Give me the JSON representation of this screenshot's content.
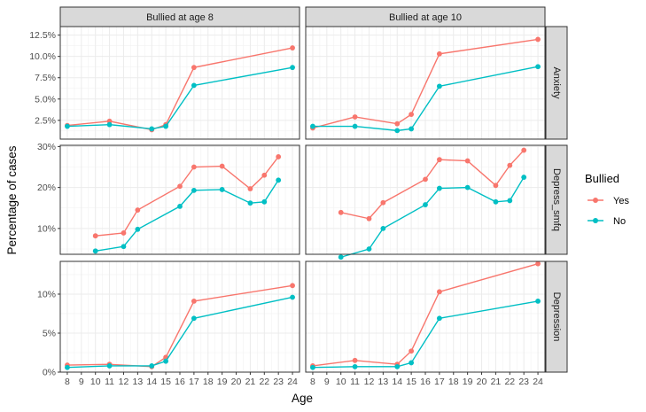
{
  "chart_data": {
    "type": "line",
    "facet_columns": [
      "Bullied at age 8",
      "Bullied at age 10"
    ],
    "facet_rows": [
      "Anxiety",
      "Depress_smfq",
      "Depression"
    ],
    "xlabel": "Age",
    "ylabel": "Percentage of cases",
    "x_ticks": [
      8,
      9,
      10,
      11,
      12,
      13,
      14,
      15,
      16,
      17,
      18,
      19,
      20,
      21,
      22,
      23,
      24
    ],
    "xlim": [
      7.5,
      24.5
    ],
    "rows": [
      {
        "name": "Anxiety",
        "ylim": [
          0.3,
          13.5
        ],
        "y_ticks": [
          2.5,
          5.0,
          7.5,
          10.0,
          12.5
        ],
        "y_tick_labels": [
          "2.5%",
          "5.0%",
          "7.5%",
          "10.0%",
          "12.5%"
        ]
      },
      {
        "name": "Depress_smfq",
        "ylim": [
          3.7,
          30.3
        ],
        "y_ticks": [
          10,
          20,
          30
        ],
        "y_tick_labels": [
          "10%",
          "20%",
          "30%"
        ]
      },
      {
        "name": "Depression",
        "ylim": [
          0,
          14.2
        ],
        "y_ticks": [
          0,
          5,
          10
        ],
        "y_tick_labels": [
          "0%",
          "5%",
          "10%"
        ]
      }
    ],
    "legend": {
      "title": "Bullied",
      "position": "right",
      "entries": [
        {
          "label": "Yes",
          "color": "#F8766D"
        },
        {
          "label": "No",
          "color": "#00BFC4"
        }
      ]
    },
    "panels": [
      {
        "row": "Anxiety",
        "col": "Bullied at age 8",
        "series": [
          {
            "group": "Yes",
            "x": [
              8,
              11,
              14,
              15,
              17,
              24
            ],
            "y": [
              1.9,
              2.4,
              1.4,
              2.0,
              8.7,
              11.0
            ]
          },
          {
            "group": "No",
            "x": [
              8,
              11,
              14,
              15,
              17,
              24
            ],
            "y": [
              1.8,
              2.0,
              1.5,
              1.8,
              6.6,
              8.7
            ]
          }
        ]
      },
      {
        "row": "Anxiety",
        "col": "Bullied at age 10",
        "series": [
          {
            "group": "Yes",
            "x": [
              8,
              11,
              14,
              15,
              17,
              24
            ],
            "y": [
              1.6,
              2.9,
              2.1,
              3.2,
              10.3,
              12.0
            ]
          },
          {
            "group": "No",
            "x": [
              8,
              11,
              14,
              15,
              17,
              24
            ],
            "y": [
              1.8,
              1.8,
              1.3,
              1.5,
              6.5,
              8.8
            ]
          }
        ]
      },
      {
        "row": "Depress_smfq",
        "col": "Bullied at age 8",
        "series": [
          {
            "group": "Yes",
            "x": [
              10,
              12,
              13,
              16,
              17,
              19,
              21,
              22,
              23
            ],
            "y": [
              8.2,
              8.9,
              14.5,
              20.3,
              25.0,
              25.2,
              19.7,
              23.0,
              27.5
            ]
          },
          {
            "group": "No",
            "x": [
              10,
              12,
              13,
              16,
              17,
              19,
              21,
              22,
              23
            ],
            "y": [
              4.5,
              5.6,
              9.8,
              15.4,
              19.3,
              19.5,
              16.2,
              16.5,
              21.8
            ]
          }
        ]
      },
      {
        "row": "Depress_smfq",
        "col": "Bullied at age 10",
        "series": [
          {
            "group": "Yes",
            "x": [
              10,
              12,
              13,
              16,
              17,
              19,
              21,
              22,
              23
            ],
            "y": [
              13.9,
              12.4,
              16.3,
              22.0,
              26.8,
              26.5,
              20.5,
              25.4,
              29.1
            ]
          },
          {
            "group": "No",
            "x": [
              10,
              12,
              13,
              16,
              17,
              19,
              21,
              22,
              23
            ],
            "y": [
              3.0,
              5.0,
              10.0,
              15.8,
              19.8,
              20.0,
              16.5,
              16.8,
              22.5
            ]
          }
        ]
      },
      {
        "row": "Depression",
        "col": "Bullied at age 8",
        "series": [
          {
            "group": "Yes",
            "x": [
              8,
              11,
              14,
              15,
              17,
              24
            ],
            "y": [
              0.9,
              1.0,
              0.7,
              1.9,
              9.1,
              11.1
            ]
          },
          {
            "group": "No",
            "x": [
              8,
              11,
              14,
              15,
              17,
              24
            ],
            "y": [
              0.6,
              0.8,
              0.8,
              1.4,
              6.9,
              9.6
            ]
          }
        ]
      },
      {
        "row": "Depression",
        "col": "Bullied at age 10",
        "series": [
          {
            "group": "Yes",
            "x": [
              8,
              11,
              14,
              15,
              17,
              24
            ],
            "y": [
              0.8,
              1.5,
              1.0,
              2.7,
              10.3,
              13.9
            ]
          },
          {
            "group": "No",
            "x": [
              8,
              11,
              14,
              15,
              17,
              24
            ],
            "y": [
              0.6,
              0.7,
              0.7,
              1.2,
              6.9,
              9.1
            ]
          }
        ]
      }
    ]
  }
}
